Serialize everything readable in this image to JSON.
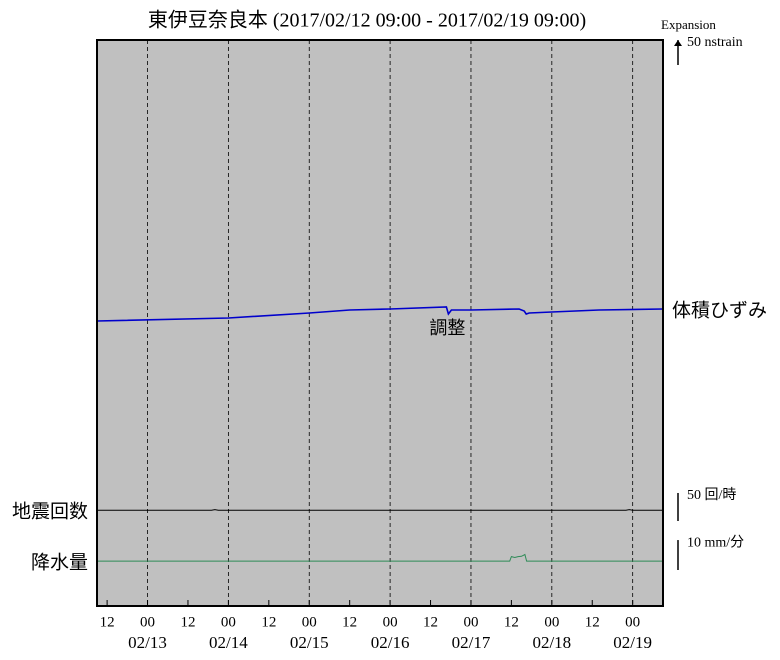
{
  "chart_data": {
    "type": "line",
    "title": "東伊豆奈良本 (2017/02/12 09:00 - 2017/02/19 09:00)",
    "background": "#c0c0c0",
    "grid": true,
    "xlim": [
      0,
      168
    ],
    "xticks": [
      {
        "value": 3,
        "label": "12"
      },
      {
        "value": 15,
        "label": "00"
      },
      {
        "value": 27,
        "label": "12"
      },
      {
        "value": 39,
        "label": "00"
      },
      {
        "value": 51,
        "label": "12"
      },
      {
        "value": 63,
        "label": "00"
      },
      {
        "value": 75,
        "label": "12"
      },
      {
        "value": 87,
        "label": "00"
      },
      {
        "value": 99,
        "label": "12"
      },
      {
        "value": 111,
        "label": "00"
      },
      {
        "value": 123,
        "label": "12"
      },
      {
        "value": 135,
        "label": "00"
      },
      {
        "value": 147,
        "label": "12"
      },
      {
        "value": 159,
        "label": "00"
      }
    ],
    "date_labels": [
      {
        "value": 15,
        "label": "02/13"
      },
      {
        "value": 39,
        "label": "02/14"
      },
      {
        "value": 63,
        "label": "02/15"
      },
      {
        "value": 87,
        "label": "02/16"
      },
      {
        "value": 111,
        "label": "02/17"
      },
      {
        "value": 135,
        "label": "02/18"
      },
      {
        "value": 159,
        "label": "02/19"
      }
    ],
    "series": [
      {
        "name": "体積ひずみ",
        "color": "#0000cc",
        "label_side": "right",
        "ylim": [
          -570,
          562
        ],
        "x": [
          0,
          39,
          63,
          75,
          87,
          103.7,
          104.3,
          105.2,
          111,
          125.3,
          126.8,
          127.4,
          128.3,
          135,
          149,
          168
        ],
        "values": [
          0,
          6,
          16,
          22,
          24,
          28,
          14,
          22,
          22,
          24,
          20,
          14,
          16,
          18,
          22,
          24
        ],
        "scale_title": "Expansion",
        "scale": {
          "value": 50,
          "label": "50 nstrain"
        },
        "annotation": {
          "x": 104,
          "text": "調整"
        }
      },
      {
        "name": "地震回数",
        "color": "#000000",
        "label_side": "left",
        "ylim": [
          -171,
          839
        ],
        "x": [
          0,
          34,
          35,
          36,
          157,
          158,
          159,
          168
        ],
        "values": [
          0,
          0,
          1,
          0,
          0,
          1,
          0,
          0
        ],
        "scale": {
          "value": 50,
          "label": "50 回/時"
        }
      },
      {
        "name": "降水量",
        "color": "#2e8b57",
        "label_side": "left",
        "ylim": [
          -15,
          174
        ],
        "x": [
          0,
          122.5,
          123,
          124,
          125,
          126,
          127,
          127.5,
          168
        ],
        "values": [
          0,
          0,
          1.5,
          1.2,
          1.5,
          1.6,
          2.2,
          0,
          0
        ],
        "scale": {
          "value": 10,
          "label": "10 mm/分"
        }
      }
    ]
  }
}
